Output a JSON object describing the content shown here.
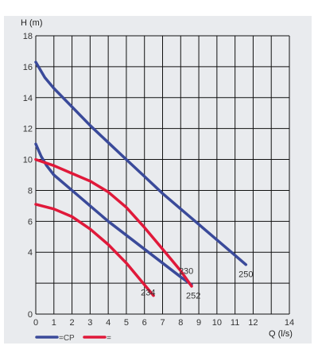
{
  "colors": {
    "background": "#e9ebee",
    "grid": "#111111",
    "series_cp": "#3a4a9a",
    "series_red": "#e0193a"
  },
  "chart_data": {
    "type": "line",
    "xlabel": "Q (l/s)",
    "ylabel": "H (m)",
    "xlim": [
      0,
      14
    ],
    "ylim": [
      0,
      18
    ],
    "x_ticks": [
      0,
      1,
      2,
      3,
      4,
      5,
      6,
      7,
      8,
      9,
      10,
      11,
      12,
      14
    ],
    "y_ticks": [
      0,
      4,
      6,
      8,
      10,
      12,
      14,
      16,
      18
    ],
    "grid": true,
    "legend": [
      {
        "label": "=CP",
        "color": "#3a4a9a"
      },
      {
        "label": "=",
        "color": "#e0193a"
      }
    ],
    "series": [
      {
        "name": "250",
        "group": "CP",
        "color": "#3a4a9a",
        "x": [
          0,
          0.5,
          1,
          2,
          3,
          4,
          5,
          6,
          7,
          8,
          9,
          10,
          11,
          11.6
        ],
        "y": [
          16.3,
          15.3,
          14.6,
          13.4,
          12.2,
          11.1,
          10.0,
          8.9,
          7.8,
          6.8,
          5.8,
          4.8,
          3.8,
          3.2
        ]
      },
      {
        "name": "252",
        "group": "CP",
        "color": "#3a4a9a",
        "x": [
          0,
          0.3,
          0.6,
          1,
          2,
          3,
          4,
          5,
          6,
          7,
          8,
          8.6
        ],
        "y": [
          11.0,
          10.2,
          9.6,
          9.0,
          8.0,
          7.0,
          6.0,
          5.1,
          4.2,
          3.3,
          2.4,
          1.9
        ]
      },
      {
        "name": "230",
        "group": "red",
        "color": "#e0193a",
        "x": [
          0,
          1,
          2,
          3,
          4,
          5,
          6,
          7,
          8,
          8.6
        ],
        "y": [
          10.0,
          9.6,
          9.1,
          8.6,
          7.9,
          6.9,
          5.6,
          4.2,
          2.8,
          1.8
        ]
      },
      {
        "name": "234",
        "group": "red",
        "color": "#e0193a",
        "x": [
          0,
          1,
          2,
          3,
          4,
          5,
          6,
          6.5
        ],
        "y": [
          7.1,
          6.8,
          6.3,
          5.5,
          4.5,
          3.3,
          1.9,
          1.2
        ]
      }
    ],
    "curve_labels": [
      {
        "text": "250",
        "x": 11.6,
        "y": 2.4
      },
      {
        "text": "230",
        "x": 8.3,
        "y": 2.6
      },
      {
        "text": "234",
        "x": 6.2,
        "y": 1.2
      },
      {
        "text": "252",
        "x": 8.7,
        "y": 1.0
      }
    ]
  }
}
